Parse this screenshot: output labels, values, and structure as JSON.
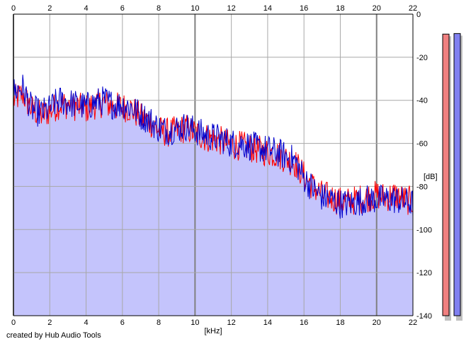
{
  "chart_data": {
    "type": "area",
    "xlabel": "[kHz]",
    "ylabel": "[dB]",
    "xlim": [
      0,
      22
    ],
    "ylim": [
      -140,
      0
    ],
    "x_ticks": [
      "0",
      "2",
      "4",
      "6",
      "8",
      "10",
      "12",
      "14",
      "16",
      "18",
      "20",
      "22"
    ],
    "y_ticks": [
      "0",
      "-20",
      "-40",
      "-60",
      "-80",
      "-100",
      "-120",
      "-140"
    ],
    "grid": true,
    "series": [
      {
        "color": "#ff0000",
        "x": [
          0,
          0.5,
          1,
          1.5,
          2,
          2.5,
          3,
          3.5,
          4,
          4.5,
          5,
          5.5,
          6,
          6.5,
          7,
          7.5,
          8,
          8.5,
          9,
          9.5,
          10,
          10.5,
          11,
          11.5,
          12,
          12.5,
          13,
          13.5,
          14,
          14.5,
          15,
          15.5,
          16,
          16.5,
          17,
          17.5,
          18,
          18.5,
          19,
          19.5,
          20,
          20.5,
          21,
          21.5,
          22
        ],
        "values": [
          -40,
          -37,
          -44,
          -47,
          -45,
          -42,
          -42,
          -43,
          -44,
          -42,
          -41,
          -43,
          -43,
          -44,
          -48,
          -50,
          -54,
          -55,
          -54,
          -53,
          -55,
          -57,
          -58,
          -59,
          -61,
          -61,
          -62,
          -63,
          -64,
          -65,
          -67,
          -69,
          -75,
          -80,
          -84,
          -85,
          -87,
          -87,
          -86,
          -85,
          -84,
          -85,
          -84,
          -86,
          -87
        ]
      },
      {
        "color": "#0000cc",
        "x": [
          0,
          0.5,
          1,
          1.5,
          2,
          2.5,
          3,
          3.5,
          4,
          4.5,
          5,
          5.5,
          6,
          6.5,
          7,
          7.5,
          8,
          8.5,
          9,
          9.5,
          10,
          10.5,
          11,
          11.5,
          12,
          12.5,
          13,
          13.5,
          14,
          14.5,
          15,
          15.5,
          16,
          16.5,
          17,
          17.5,
          18,
          18.5,
          19,
          19.5,
          20,
          20.5,
          21,
          21.5,
          22
        ],
        "values": [
          -36,
          -34,
          -44,
          -46,
          -44,
          -40,
          -41,
          -42,
          -43,
          -41,
          -40,
          -42,
          -42,
          -43,
          -47,
          -49,
          -53,
          -54,
          -53,
          -52,
          -54,
          -56,
          -57,
          -58,
          -60,
          -60,
          -61,
          -62,
          -63,
          -64,
          -66,
          -68,
          -76,
          -81,
          -85,
          -86,
          -88,
          -88,
          -87,
          -86,
          -86,
          -86,
          -86,
          -87,
          -88
        ]
      }
    ],
    "fill_color": "#c4c4fc",
    "level_meters": [
      {
        "color": "#f08080",
        "level": 0.975
      },
      {
        "color": "#8080f0",
        "level": 0.977
      }
    ]
  },
  "footer": {
    "credit": "created by Hub Audio Tools"
  }
}
